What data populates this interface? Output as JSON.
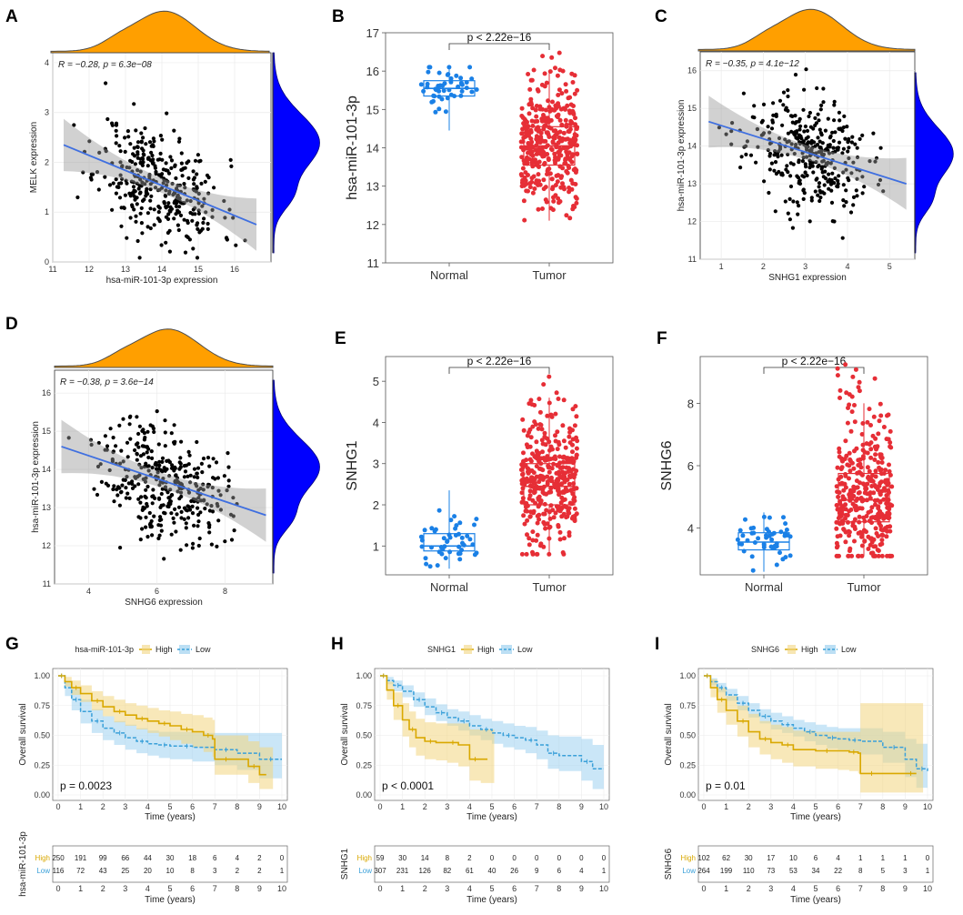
{
  "chart_data": [
    {
      "panel": "A",
      "type": "scatter",
      "xlabel": "hsa-miR-101-3p expression",
      "ylabel": "MELK expression",
      "xlim": [
        11,
        17
      ],
      "ylim": [
        0,
        4.2
      ],
      "xticks": [
        11,
        12,
        13,
        14,
        15,
        16
      ],
      "yticks": [
        0,
        1,
        2,
        3,
        4
      ],
      "annotation": "R = −0.28, p = 6.3e−08",
      "fit": {
        "x0": 11.3,
        "y0": 2.35,
        "x1": 16.6,
        "y1": 0.75
      },
      "n_points": 360,
      "seed": 11,
      "marginal": {
        "x_color": "#ff9f00",
        "y_color": "#0000ff",
        "x_edge": "#4d4d4d"
      }
    },
    {
      "panel": "B",
      "type": "box",
      "ylabel": "hsa-miR-101-3p",
      "categories": [
        "Normal",
        "Tumor"
      ],
      "ylim": [
        11,
        17
      ],
      "yticks": [
        11,
        12,
        13,
        14,
        15,
        16,
        17
      ],
      "pvalue": "p < 2.22e−16",
      "groups": [
        {
          "name": "Normal",
          "color": "#1a80e6",
          "q1": 15.35,
          "median": 15.55,
          "q3": 15.75,
          "whisk_lo": 14.45,
          "whisk_hi": 16.1,
          "n": 48
        },
        {
          "name": "Tumor",
          "color": "#e62e36",
          "q1": 13.55,
          "median": 14.05,
          "q3": 14.55,
          "whisk_lo": 12.1,
          "whisk_hi": 16.0,
          "n": 370,
          "min": 11.25,
          "max": 16.6
        }
      ]
    },
    {
      "panel": "C",
      "type": "scatter",
      "xlabel": "SNHG1 expression",
      "ylabel": "hsa-miR-101-3p expression",
      "xlim": [
        0.5,
        5.6
      ],
      "ylim": [
        11,
        16.5
      ],
      "xticks": [
        1,
        2,
        3,
        4,
        5
      ],
      "yticks": [
        11,
        12,
        13,
        14,
        15,
        16
      ],
      "annotation": "R = −0.35, p = 4.1e−12",
      "fit": {
        "x0": 0.7,
        "y0": 14.65,
        "x1": 5.4,
        "y1": 13.0
      },
      "n_points": 360,
      "seed": 23,
      "marginal": {
        "x_color": "#ff9f00",
        "y_color": "#0000ff",
        "x_edge": "#4d4d4d"
      }
    },
    {
      "panel": "D",
      "type": "scatter",
      "xlabel": "SNHG6 expression",
      "ylabel": "hsa-miR-101-3p expression",
      "xlim": [
        3,
        9.4
      ],
      "ylim": [
        11,
        16.6
      ],
      "xticks": [
        4,
        6,
        8
      ],
      "yticks": [
        11,
        12,
        13,
        14,
        15,
        16
      ],
      "annotation": "R = −0.38, p = 3.6e−14",
      "fit": {
        "x0": 3.2,
        "y0": 14.6,
        "x1": 9.2,
        "y1": 12.8
      },
      "n_points": 360,
      "seed": 37,
      "marginal": {
        "x_color": "#ff9f00",
        "y_color": "#0000ff",
        "x_edge": "#4d4d4d"
      }
    },
    {
      "panel": "E",
      "type": "box",
      "ylabel": "SNHG1",
      "categories": [
        "Normal",
        "Tumor"
      ],
      "ylim": [
        0.3,
        5.6
      ],
      "yticks": [
        1,
        2,
        3,
        4,
        5
      ],
      "pvalue": "p < 2.22e−16",
      "groups": [
        {
          "name": "Normal",
          "color": "#1a80e6",
          "q1": 0.88,
          "median": 1.0,
          "q3": 1.3,
          "whisk_lo": 0.45,
          "whisk_hi": 2.35,
          "n": 48
        },
        {
          "name": "Tumor",
          "color": "#e62e36",
          "q1": 2.0,
          "median": 2.45,
          "q3": 3.0,
          "whisk_lo": 0.8,
          "whisk_hi": 4.6,
          "n": 370,
          "min": 0.8,
          "max": 5.45
        }
      ]
    },
    {
      "panel": "F",
      "type": "box",
      "ylabel": "SNHG6",
      "categories": [
        "Normal",
        "Tumor"
      ],
      "ylim": [
        2.5,
        9.5
      ],
      "yticks": [
        4,
        6,
        8
      ],
      "pvalue": "p < 2.22e−16",
      "groups": [
        {
          "name": "Normal",
          "color": "#1a80e6",
          "q1": 3.3,
          "median": 3.55,
          "q3": 3.85,
          "whisk_lo": 2.6,
          "whisk_hi": 4.5,
          "n": 48
        },
        {
          "name": "Tumor",
          "color": "#e62e36",
          "q1": 4.2,
          "median": 4.9,
          "q3": 5.75,
          "whisk_lo": 3.1,
          "whisk_hi": 8.0,
          "n": 370,
          "min": 3.1,
          "max": 9.3
        }
      ]
    },
    {
      "panel": "G",
      "type": "line",
      "subtype": "kaplan-meier",
      "title": "hsa-miR-101-3p",
      "legend": [
        "High",
        "Low"
      ],
      "ylabel": "Overall survival",
      "xlabel": "Time (years)",
      "xticks": [
        0,
        1,
        2,
        3,
        4,
        5,
        6,
        7,
        8,
        9,
        10
      ],
      "yticks": [
        "0.00",
        "0.25",
        "0.50",
        "0.75",
        "1.00"
      ],
      "pvalue": "p = 0.0023",
      "high": {
        "t": [
          0,
          0.3,
          0.6,
          1,
          1.5,
          2,
          2.5,
          3,
          3.5,
          4,
          4.5,
          5,
          5.5,
          6,
          6.5,
          6.9,
          7,
          8,
          8.5,
          9,
          9.3
        ],
        "s": [
          1,
          0.95,
          0.9,
          0.85,
          0.79,
          0.74,
          0.7,
          0.67,
          0.64,
          0.62,
          0.6,
          0.58,
          0.55,
          0.53,
          0.5,
          0.47,
          0.3,
          0.3,
          0.24,
          0.17,
          0.17
        ],
        "upper": [
          1,
          0.99,
          0.96,
          0.92,
          0.87,
          0.83,
          0.8,
          0.77,
          0.75,
          0.73,
          0.71,
          0.7,
          0.68,
          0.67,
          0.65,
          0.63,
          0.5,
          0.5,
          0.45,
          0.4,
          0.4
        ],
        "lower": [
          1,
          0.91,
          0.84,
          0.78,
          0.71,
          0.66,
          0.61,
          0.58,
          0.55,
          0.52,
          0.49,
          0.46,
          0.43,
          0.4,
          0.36,
          0.32,
          0.17,
          0.17,
          0.1,
          0.05,
          0.05
        ]
      },
      "low": {
        "t": [
          0,
          0.3,
          0.6,
          1,
          1.5,
          2,
          2.5,
          3,
          3.5,
          4,
          4.5,
          5,
          5.5,
          6,
          7,
          8,
          9,
          10
        ],
        "s": [
          1,
          0.9,
          0.8,
          0.7,
          0.62,
          0.56,
          0.52,
          0.48,
          0.45,
          0.43,
          0.42,
          0.41,
          0.41,
          0.4,
          0.38,
          0.35,
          0.3,
          0.3
        ],
        "upper": [
          1,
          0.96,
          0.89,
          0.8,
          0.72,
          0.66,
          0.62,
          0.59,
          0.56,
          0.54,
          0.53,
          0.53,
          0.53,
          0.52,
          0.52,
          0.52,
          0.52,
          0.52
        ],
        "lower": [
          1,
          0.83,
          0.71,
          0.6,
          0.52,
          0.46,
          0.42,
          0.38,
          0.35,
          0.33,
          0.31,
          0.3,
          0.3,
          0.28,
          0.25,
          0.21,
          0.14,
          0.12
        ]
      },
      "risk_label": "hsa-miR-101-3p",
      "risk": {
        "High": [
          250,
          191,
          99,
          66,
          44,
          30,
          18,
          6,
          4,
          2,
          0
        ],
        "Low": [
          116,
          72,
          43,
          25,
          20,
          10,
          8,
          3,
          2,
          2,
          1
        ]
      }
    },
    {
      "panel": "H",
      "type": "line",
      "subtype": "kaplan-meier",
      "title": "SNHG1",
      "legend": [
        "High",
        "Low"
      ],
      "ylabel": "Overall survival",
      "xlabel": "Time (years)",
      "xticks": [
        0,
        1,
        2,
        3,
        4,
        5,
        6,
        7,
        8,
        9,
        10
      ],
      "yticks": [
        "0.00",
        "0.25",
        "0.50",
        "0.75",
        "1.00"
      ],
      "pvalue": "p < 0.0001",
      "high": {
        "t": [
          0,
          0.3,
          0.6,
          1,
          1.3,
          1.6,
          2,
          2.5,
          3,
          3.5,
          4,
          4.5,
          4.8
        ],
        "s": [
          1,
          0.88,
          0.75,
          0.63,
          0.55,
          0.48,
          0.45,
          0.44,
          0.44,
          0.42,
          0.3,
          0.3,
          0.3
        ],
        "upper": [
          1,
          0.95,
          0.86,
          0.77,
          0.7,
          0.64,
          0.61,
          0.6,
          0.6,
          0.6,
          0.55,
          0.55,
          0.55
        ],
        "lower": [
          1,
          0.8,
          0.63,
          0.49,
          0.4,
          0.33,
          0.3,
          0.29,
          0.27,
          0.24,
          0.12,
          0.1,
          0.1
        ]
      },
      "low": {
        "t": [
          0,
          0.3,
          0.6,
          1,
          1.5,
          2,
          2.5,
          3,
          3.5,
          4,
          4.5,
          5,
          5.5,
          6,
          6.5,
          7,
          7.5,
          8,
          9,
          9.5,
          10
        ],
        "s": [
          1,
          0.96,
          0.92,
          0.87,
          0.8,
          0.74,
          0.69,
          0.65,
          0.62,
          0.58,
          0.55,
          0.52,
          0.5,
          0.48,
          0.46,
          0.42,
          0.35,
          0.33,
          0.28,
          0.22,
          0.22
        ],
        "upper": [
          1,
          0.99,
          0.96,
          0.92,
          0.86,
          0.81,
          0.76,
          0.72,
          0.7,
          0.67,
          0.64,
          0.62,
          0.6,
          0.58,
          0.57,
          0.54,
          0.5,
          0.49,
          0.47,
          0.42,
          0.42
        ],
        "lower": [
          1,
          0.93,
          0.87,
          0.82,
          0.74,
          0.67,
          0.62,
          0.58,
          0.54,
          0.5,
          0.46,
          0.43,
          0.4,
          0.38,
          0.35,
          0.3,
          0.22,
          0.2,
          0.12,
          0.05,
          0.05
        ]
      },
      "risk_label": "SNHG1",
      "risk": {
        "High": [
          59,
          30,
          14,
          8,
          2,
          0,
          0,
          0,
          0,
          0,
          0
        ],
        "Low": [
          307,
          231,
          126,
          82,
          61,
          40,
          26,
          9,
          6,
          4,
          1
        ]
      }
    },
    {
      "panel": "I",
      "type": "line",
      "subtype": "kaplan-meier",
      "title": "SNHG6",
      "legend": [
        "High",
        "Low"
      ],
      "ylabel": "Overall survival",
      "xlabel": "Time (years)",
      "xticks": [
        0,
        1,
        2,
        3,
        4,
        5,
        6,
        7,
        8,
        9,
        10
      ],
      "yticks": [
        "0.00",
        "0.25",
        "0.50",
        "0.75",
        "1.00"
      ],
      "pvalue": "p = 0.01",
      "high": {
        "t": [
          0,
          0.3,
          0.6,
          1,
          1.5,
          2,
          2.5,
          3,
          3.5,
          4,
          5,
          6,
          6.5,
          6.9,
          7,
          8,
          9,
          9.5
        ],
        "s": [
          1,
          0.9,
          0.8,
          0.71,
          0.62,
          0.53,
          0.47,
          0.44,
          0.42,
          0.38,
          0.37,
          0.37,
          0.36,
          0.35,
          0.18,
          0.18,
          0.18,
          0.18
        ],
        "upper": [
          1,
          0.97,
          0.9,
          0.83,
          0.75,
          0.68,
          0.62,
          0.59,
          0.57,
          0.54,
          0.53,
          0.53,
          0.53,
          0.53,
          0.77,
          0.77,
          0.77,
          0.77
        ],
        "lower": [
          1,
          0.82,
          0.69,
          0.59,
          0.49,
          0.4,
          0.34,
          0.3,
          0.27,
          0.24,
          0.22,
          0.21,
          0.2,
          0.18,
          0.02,
          0.02,
          0.02,
          0.02
        ]
      },
      "low": {
        "t": [
          0,
          0.3,
          0.6,
          1,
          1.5,
          2,
          2.5,
          3,
          3.5,
          4,
          4.5,
          5,
          5.5,
          6,
          6.5,
          7,
          8,
          9,
          9.5,
          10
        ],
        "s": [
          1,
          0.95,
          0.9,
          0.84,
          0.77,
          0.71,
          0.66,
          0.62,
          0.59,
          0.56,
          0.53,
          0.5,
          0.48,
          0.47,
          0.46,
          0.45,
          0.4,
          0.3,
          0.22,
          0.2
        ],
        "upper": [
          1,
          0.98,
          0.94,
          0.89,
          0.83,
          0.77,
          0.72,
          0.69,
          0.66,
          0.63,
          0.61,
          0.59,
          0.57,
          0.56,
          0.56,
          0.56,
          0.53,
          0.47,
          0.43,
          0.43
        ],
        "lower": [
          1,
          0.92,
          0.86,
          0.79,
          0.71,
          0.65,
          0.6,
          0.55,
          0.52,
          0.49,
          0.45,
          0.42,
          0.39,
          0.38,
          0.36,
          0.34,
          0.27,
          0.15,
          0.06,
          0.03
        ]
      },
      "risk_label": "SNHG6",
      "risk": {
        "High": [
          102,
          62,
          30,
          17,
          10,
          6,
          4,
          1,
          1,
          1,
          0
        ],
        "Low": [
          264,
          199,
          110,
          73,
          53,
          34,
          22,
          8,
          5,
          3,
          1
        ]
      }
    }
  ],
  "colors": {
    "high": "#d9a800",
    "high_fill": "#f2d580",
    "low": "#3aa0d9",
    "low_fill": "#9fd2f0",
    "box_normal": "#1a80e6",
    "box_tumor": "#e62e36"
  }
}
